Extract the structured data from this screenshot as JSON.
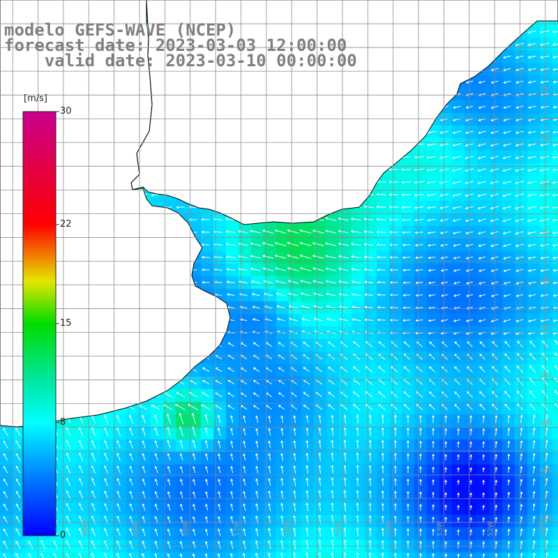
{
  "title": {
    "line1": "modelo GEFS-WAVE (NCEP)",
    "line2": "forecast date: 2023-03-03 12:00:00",
    "line3": "    valid date: 2023-03-10 00:00:00"
  },
  "colorbar": {
    "unit": "[m/s]",
    "ticks": [
      {
        "label": "30",
        "value": 30
      },
      {
        "label": "22",
        "value": 22
      },
      {
        "label": "15",
        "value": 15
      },
      {
        "label": "8",
        "value": 8
      },
      {
        "label": "0",
        "value": 0
      }
    ],
    "min": 0,
    "max": 30
  },
  "map": {
    "lon_range": [
      -61.75,
      -50.75
    ],
    "lat_range": [
      -41.75,
      -30
    ],
    "lat_labels": [
      "32S",
      "33S",
      "34S",
      "35S",
      "36S",
      "37S",
      "38S",
      "39S",
      "40S",
      "41S"
    ],
    "lon_labels": [
      "60W",
      "59W",
      "58W",
      "57W",
      "56W",
      "55W",
      "54W",
      "53W",
      "52W",
      "51W"
    ],
    "grid": true,
    "colors": {
      "land": "#ffffff",
      "coast": "#000000",
      "grid": "#8a8a8a",
      "arrows": "#ffffff",
      "axis_labels": "#9a9a9a"
    }
  }
}
